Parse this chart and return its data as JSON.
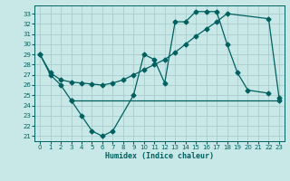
{
  "background_color": "#c8e8e8",
  "grid_color": "#aacccc",
  "line_color": "#006060",
  "xlabel": "Humidex (Indice chaleur)",
  "xlim": [
    -0.5,
    23.5
  ],
  "ylim": [
    20.5,
    33.8
  ],
  "yticks": [
    21,
    22,
    23,
    24,
    25,
    26,
    27,
    28,
    29,
    30,
    31,
    32,
    33
  ],
  "xticks": [
    0,
    1,
    2,
    3,
    4,
    5,
    6,
    7,
    8,
    9,
    10,
    11,
    12,
    13,
    14,
    15,
    16,
    17,
    18,
    19,
    20,
    21,
    22,
    23
  ],
  "line1_x": [
    0,
    1,
    2,
    3,
    4,
    5,
    6,
    7,
    9,
    10,
    11,
    12,
    13,
    14,
    15,
    16,
    17,
    18,
    19,
    20,
    22
  ],
  "line1_y": [
    29,
    27,
    26,
    24.5,
    23,
    21.5,
    21,
    21.5,
    25,
    29,
    28.5,
    26.2,
    32.2,
    32.2,
    33.2,
    33.2,
    33.2,
    30,
    27.2,
    25.5,
    25.2
  ],
  "line2_x": [
    0,
    1,
    2,
    3,
    4,
    5,
    6,
    7,
    8,
    9,
    10,
    11,
    12,
    13,
    14,
    15,
    16,
    17,
    18,
    22,
    23
  ],
  "line2_y": [
    29,
    27.2,
    26.5,
    26.3,
    26.2,
    26.1,
    26.0,
    26.2,
    26.5,
    27.0,
    27.5,
    28.0,
    28.5,
    29.2,
    30.0,
    30.8,
    31.5,
    32.2,
    33.0,
    32.5,
    24.8
  ],
  "line3_x": [
    3,
    23
  ],
  "line3_y": [
    24.5,
    24.5
  ],
  "marker_size": 2.5,
  "linewidth": 0.9
}
